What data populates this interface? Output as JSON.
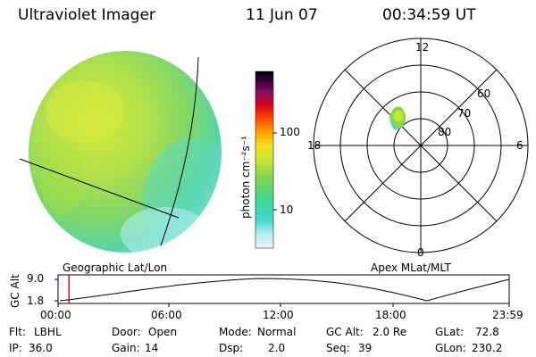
{
  "header": {
    "instrument": "Ultraviolet Imager",
    "date": "11 Jun 07",
    "time": "00:34:59 UT"
  },
  "colorbar": {
    "unit_label": "photon cm⁻²s⁻¹",
    "ticks": [
      {
        "label": "100",
        "value": 100
      },
      {
        "label": "10",
        "value": 10
      }
    ]
  },
  "polar_plot": {
    "mlt_labels": {
      "top": "12",
      "left": "18",
      "right": "6",
      "bottom": "0"
    },
    "mlat_labels": [
      "60",
      "70",
      "80"
    ]
  },
  "timeline": {
    "left_caption": "Geographic Lat/Lon",
    "right_caption": "Apex MLat/MLT",
    "y_axis_title": "GC Alt",
    "y_ticks": [
      "9.0",
      "1.8"
    ],
    "x_ticks": [
      "00:00",
      "06:00",
      "12:00",
      "18:00",
      "23:59"
    ],
    "current_time_hours": 0.58,
    "altitude_range_re": [
      1.8,
      9.0
    ]
  },
  "info": {
    "flt": {
      "label": "Flt:",
      "value": "LBHL"
    },
    "ip": {
      "label": "IP:",
      "value": "36.0"
    },
    "door": {
      "label": "Door:",
      "value": "Open"
    },
    "gain": {
      "label": "Gain:",
      "value": "14"
    },
    "mode": {
      "label": "Mode:",
      "value": "Normal"
    },
    "dsp": {
      "label": "Dsp:",
      "value": "2.0"
    },
    "gcalt": {
      "label": "GC Alt:",
      "value": "2.0 Re"
    },
    "seq": {
      "label": "Seq:",
      "value": "39"
    },
    "glat": {
      "label": "GLat:",
      "value": "72.8"
    },
    "glon": {
      "label": "GLon:",
      "value": "230.2"
    }
  },
  "colors": {
    "timeline_marker": "#ff0000",
    "image_base": "#7ed957",
    "image_bright": "#c8e830",
    "image_dim": "#40d0c8"
  }
}
